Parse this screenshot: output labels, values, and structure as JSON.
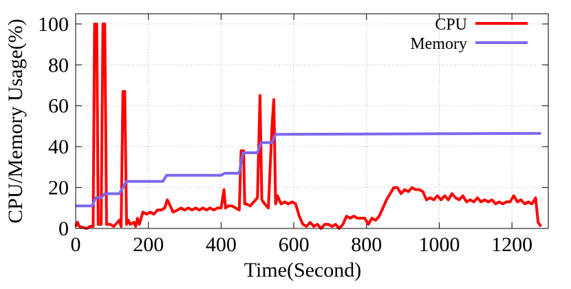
{
  "chart_data": {
    "type": "line",
    "xlabel": "Time(Second)",
    "ylabel": "CPU/Memory Usage(%)",
    "xlim": [
      0,
      1300
    ],
    "ylim": [
      0,
      105
    ],
    "xticks": [
      0,
      200,
      400,
      600,
      800,
      1000,
      1200
    ],
    "yticks": [
      0,
      20,
      40,
      60,
      80,
      100
    ],
    "grid": true,
    "legend": "top-right",
    "series": [
      {
        "name": "CPU",
        "color": "#ff0000",
        "x": [
          0,
          5,
          10,
          20,
          30,
          40,
          48,
          52,
          58,
          62,
          70,
          75,
          80,
          85,
          95,
          105,
          115,
          120,
          125,
          130,
          135,
          140,
          145,
          150,
          160,
          165,
          170,
          175,
          185,
          195,
          205,
          215,
          225,
          235,
          245,
          252,
          260,
          268,
          280,
          290,
          300,
          310,
          320,
          330,
          340,
          350,
          360,
          370,
          380,
          390,
          400,
          408,
          412,
          420,
          430,
          440,
          450,
          455,
          462,
          465,
          470,
          480,
          490,
          500,
          507,
          512,
          520,
          530,
          540,
          545,
          550,
          555,
          565,
          575,
          585,
          595,
          605,
          615,
          625,
          635,
          645,
          655,
          665,
          675,
          685,
          695,
          705,
          715,
          725,
          735,
          745,
          755,
          765,
          775,
          785,
          795,
          805,
          815,
          825,
          835,
          845,
          855,
          865,
          875,
          885,
          895,
          905,
          915,
          925,
          935,
          945,
          955,
          965,
          975,
          985,
          995,
          1005,
          1015,
          1025,
          1035,
          1045,
          1055,
          1065,
          1075,
          1085,
          1095,
          1105,
          1115,
          1125,
          1135,
          1145,
          1155,
          1165,
          1175,
          1185,
          1195,
          1205,
          1215,
          1225,
          1235,
          1245,
          1255,
          1265,
          1272,
          1280
        ],
        "values": [
          1,
          3,
          1,
          0.5,
          0,
          1,
          1,
          100,
          100,
          2,
          2,
          100,
          100,
          2,
          2,
          1,
          3,
          4,
          1,
          67,
          67,
          2,
          4,
          2,
          3,
          1,
          5,
          2,
          8,
          7,
          8,
          7,
          9,
          9,
          10,
          14,
          11,
          8,
          9,
          10,
          9,
          10,
          9,
          10,
          9,
          10,
          9,
          10,
          9,
          10,
          10,
          19,
          10,
          11,
          11,
          10,
          9,
          38,
          38,
          12,
          12,
          11,
          13,
          15,
          65,
          14,
          12,
          10,
          50,
          63,
          12,
          16,
          12,
          13,
          12,
          13,
          12,
          6,
          2,
          1,
          3,
          1,
          2,
          0,
          2,
          2,
          1,
          2,
          0,
          2,
          6,
          5,
          6,
          5,
          5,
          5,
          2,
          5,
          4,
          6,
          10,
          14,
          17,
          20,
          20,
          17,
          19,
          18,
          20,
          19,
          19,
          18,
          14,
          15,
          14,
          16,
          14,
          16,
          14,
          17,
          15,
          14,
          16,
          13,
          14,
          13,
          15,
          13,
          14,
          13,
          14,
          12,
          13,
          12,
          13,
          13,
          16,
          13,
          14,
          12,
          13,
          12,
          15,
          3,
          1
        ]
      },
      {
        "name": "Memory",
        "color": "#7b68ee",
        "x": [
          0,
          45,
          55,
          70,
          80,
          120,
          130,
          140,
          240,
          250,
          400,
          410,
          450,
          460,
          500,
          510,
          540,
          550,
          1280
        ],
        "values": [
          11,
          11,
          15,
          15,
          17,
          17,
          20,
          23,
          23,
          26,
          26,
          27,
          27,
          37,
          37,
          42,
          42,
          46,
          46.5
        ]
      }
    ]
  }
}
